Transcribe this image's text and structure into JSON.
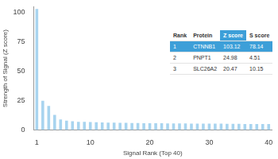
{
  "chart_data": {
    "type": "bar",
    "x_label": "Signal Rank (Top 40)",
    "y_label": "Strength of Signal (Z score)",
    "categories": [
      "1",
      null,
      null,
      null,
      null,
      null,
      null,
      null,
      null,
      "10",
      null,
      null,
      null,
      null,
      null,
      null,
      null,
      null,
      null,
      "20",
      null,
      null,
      null,
      null,
      null,
      null,
      null,
      null,
      null,
      "30",
      null,
      null,
      null,
      null,
      null,
      null,
      null,
      null,
      null,
      "40"
    ],
    "values": [
      103.12,
      24.98,
      20.47,
      13,
      9,
      8,
      7.5,
      7,
      7,
      6.8,
      6.6,
      6.5,
      6.4,
      6.3,
      6.2,
      6.1,
      6,
      6,
      5.9,
      5.9,
      5.8,
      5.8,
      5.7,
      5.7,
      5.6,
      5.6,
      5.5,
      5.5,
      5.5,
      5.4,
      5.4,
      5.4,
      5.3,
      5.3,
      5.3,
      5.2,
      5.2,
      5.2,
      5.1,
      5.1
    ],
    "color": "#a8d4ef",
    "ylim": [
      0,
      105
    ],
    "yticks": [
      0,
      25,
      50,
      75,
      100
    ],
    "grid": false
  },
  "table": {
    "columns": [
      "Rank",
      "Protein",
      "Z score",
      "S score"
    ],
    "rows": [
      [
        1,
        "CTNNB1",
        103.12,
        78.14
      ],
      [
        2,
        "PNPT1",
        24.98,
        4.51
      ],
      [
        3,
        "SLC26A2",
        20.47,
        10.15
      ]
    ]
  }
}
